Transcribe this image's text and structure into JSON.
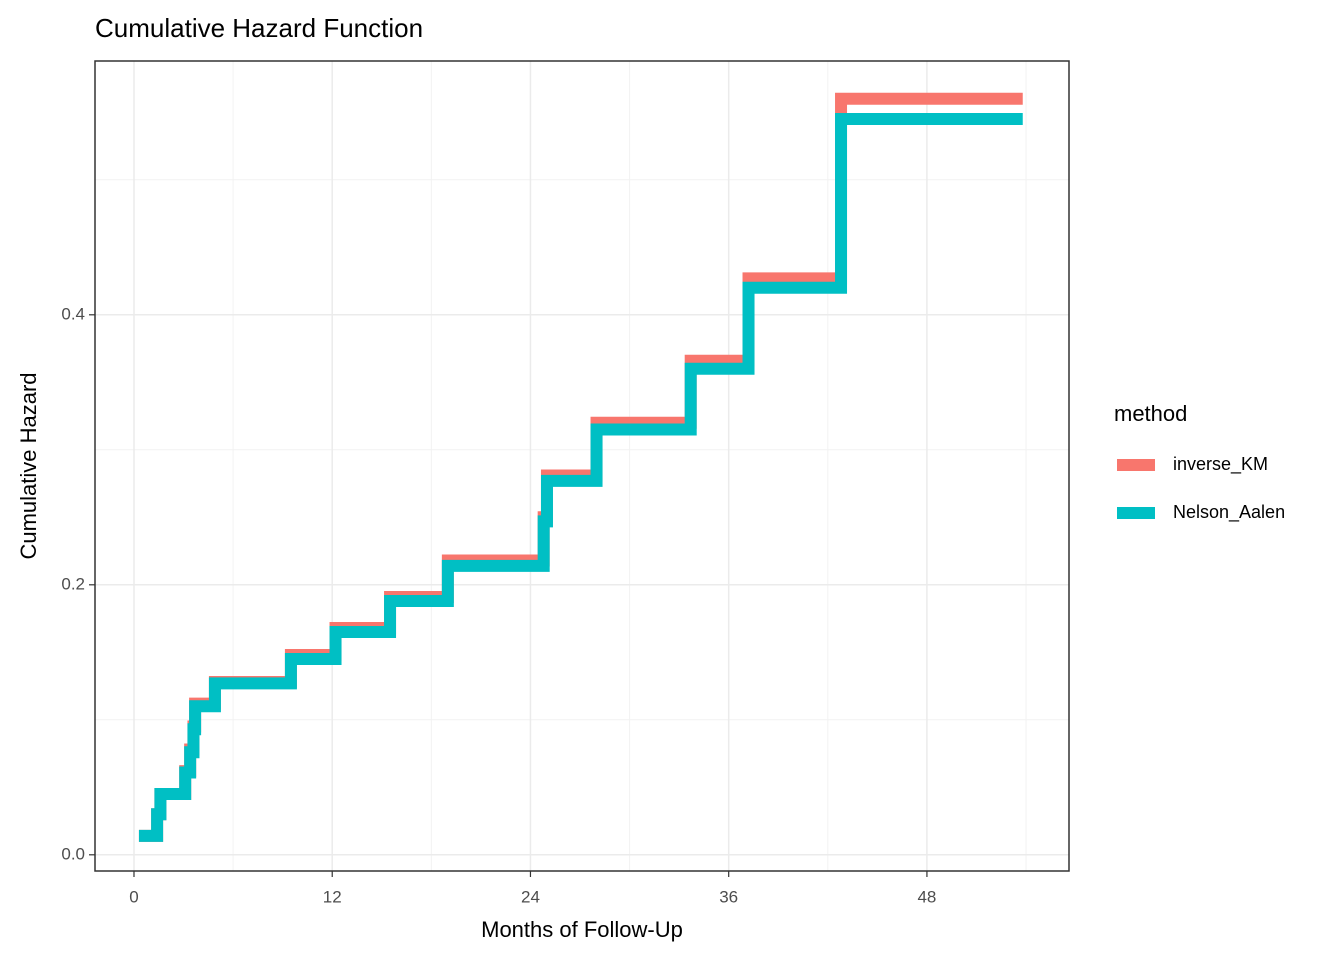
{
  "chart_data": {
    "type": "step",
    "title": "Cumulative Hazard Function",
    "x_label": "Months of Follow-Up",
    "y_label": "Cumulative Hazard",
    "legend_title": "method",
    "x": [
      0.3,
      1.4,
      1.6,
      3.1,
      3.4,
      3.6,
      3.7,
      4.9,
      9.5,
      12.2,
      15.5,
      19.0,
      24.8,
      25.0,
      28.0,
      33.7,
      37.2,
      42.8,
      53.8
    ],
    "series": [
      {
        "name": "inverse_KM",
        "color": "#f8766d",
        "values": [
          0.014,
          0.03,
          0.045,
          0.062,
          0.078,
          0.095,
          0.112,
          0.128,
          0.148,
          0.168,
          0.191,
          0.218,
          0.25,
          0.281,
          0.32,
          0.366,
          0.427,
          0.56,
          0.56
        ]
      },
      {
        "name": "Nelson_Aalen",
        "color": "#00bfc4",
        "values": [
          0.014,
          0.03,
          0.045,
          0.061,
          0.076,
          0.093,
          0.11,
          0.127,
          0.145,
          0.165,
          0.188,
          0.214,
          0.247,
          0.277,
          0.315,
          0.36,
          0.42,
          0.545,
          0.545
        ]
      }
    ],
    "xlim": [
      -2.36,
      56.6
    ],
    "xticks": [
      0,
      12,
      24,
      36,
      48
    ],
    "ylim": [
      -0.012,
      0.588
    ],
    "yticks": [
      {
        "value": 0,
        "label": "0.0"
      },
      0.2,
      0.4
    ],
    "grid": true,
    "legend": "right"
  }
}
